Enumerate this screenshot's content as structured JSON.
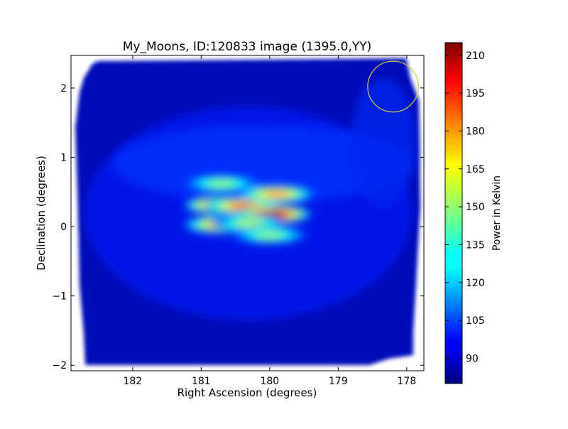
{
  "chart_data": {
    "type": "heatmap",
    "title": "My_Moons, ID:120833 image (1395.0,YY)",
    "xlabel": "Right Ascension (degrees)",
    "ylabel": "Declination (degrees)",
    "xlim": [
      182.9,
      177.75
    ],
    "ylim": [
      -2.08,
      2.47
    ],
    "x_ticks": [
      {
        "value": 182,
        "label": "182"
      },
      {
        "value": 181,
        "label": "181"
      },
      {
        "value": 180,
        "label": "180"
      },
      {
        "value": 179,
        "label": "179"
      },
      {
        "value": 178,
        "label": "178"
      }
    ],
    "y_ticks": [
      {
        "value": 2,
        "label": "2"
      },
      {
        "value": 1,
        "label": "1"
      },
      {
        "value": 0,
        "label": "0"
      },
      {
        "value": -1,
        "label": "−1"
      },
      {
        "value": -2,
        "label": "−2"
      }
    ],
    "colorbar": {
      "label": "Power in Kelvin",
      "range": [
        80,
        215
      ],
      "colormap": "jet",
      "ticks": [
        {
          "value": 90,
          "label": "90"
        },
        {
          "value": 105,
          "label": "105"
        },
        {
          "value": 120,
          "label": "120"
        },
        {
          "value": 135,
          "label": "135"
        },
        {
          "value": 150,
          "label": "150"
        },
        {
          "value": 165,
          "label": "165"
        },
        {
          "value": 180,
          "label": "180"
        },
        {
          "value": 195,
          "label": "195"
        },
        {
          "value": 210,
          "label": "210"
        }
      ]
    },
    "field_background": 92,
    "hotspots": [
      {
        "ra": 180.7,
        "dec": 0.31,
        "value": 205
      },
      {
        "ra": 180.4,
        "dec": 0.3,
        "value": 190
      },
      {
        "ra": 179.95,
        "dec": 0.18,
        "value": 213
      },
      {
        "ra": 180.7,
        "dec": 0.03,
        "value": 185
      },
      {
        "ra": 179.9,
        "dec": 0.47,
        "value": 180
      },
      {
        "ra": 180.3,
        "dec": 0.05,
        "value": 155
      },
      {
        "ra": 180.0,
        "dec": -0.12,
        "value": 150
      },
      {
        "ra": 180.7,
        "dec": 0.62,
        "value": 150
      }
    ],
    "marker_circle": {
      "ra": 178.2,
      "dec": 2.02,
      "radius_deg": 0.37,
      "color": "#cccc44"
    }
  }
}
